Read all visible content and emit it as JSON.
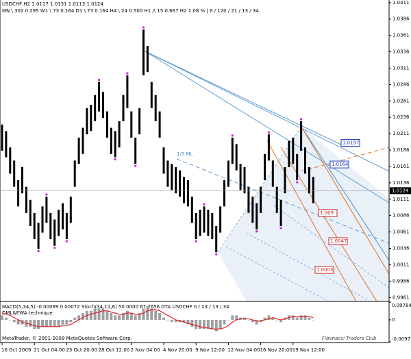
{
  "chart_data": {
    "type": "hl-bar",
    "title": "USDCHF,H2  1.0117 1.0131 1.0113 1.0124",
    "subtitle": "MN \\ 302   0.295   W1 \\ 73   0.164   D1 \\ 73   0.164   H4 \\ 24   0.500   H1 /\\ 15   0.667   H2  1.08 %  |  6 / 120 / 21 / 13 / 34",
    "annotation": "1/3 ML",
    "categories": [
      "16 Oct 2009",
      null,
      null,
      null,
      null,
      null,
      null,
      null,
      "21 Oct 04:00",
      null,
      null,
      null,
      null,
      null,
      null,
      null,
      "23 Oct 20:00",
      null,
      null,
      null,
      null,
      null,
      null,
      null,
      "28 Oct 12:00",
      null,
      null,
      null,
      null,
      null,
      null,
      null,
      "2 Nov 04:00",
      null,
      null,
      null,
      null,
      null,
      null,
      null,
      "4 Nov 20:00",
      null,
      null,
      null,
      null,
      null,
      null,
      null,
      "9 Nov 12:00",
      null,
      null,
      null,
      null,
      null,
      null,
      null,
      "12 Nov 04:00",
      null,
      null,
      null,
      null,
      null,
      null,
      null,
      "16 Nov 20:00",
      null,
      null,
      null,
      null,
      null,
      null,
      null,
      "19 Nov 12:00",
      null,
      null,
      null,
      null,
      null
    ],
    "series": [
      {
        "name": "High",
        "color": "#000000",
        "values": [
          1.0225,
          1.0215,
          1.019,
          1.017,
          1.014,
          1.016,
          1.013,
          1.011,
          1.009,
          1.0075,
          1.01,
          1.0115,
          1.009,
          1.008,
          1.0095,
          1.0105,
          1.009,
          1.0115,
          1.017,
          1.0205,
          1.022,
          1.025,
          1.0255,
          1.027,
          1.029,
          1.0275,
          1.0245,
          1.022,
          1.0215,
          1.023,
          1.027,
          1.03,
          1.0245,
          1.0205,
          1.025,
          1.037,
          1.0345,
          1.029,
          1.027,
          1.0245,
          1.019,
          1.017,
          1.0165,
          1.016,
          1.0155,
          1.0145,
          1.014,
          1.0115,
          1.009,
          1.0095,
          1.01,
          1.0095,
          1.009,
          1.007,
          1.01,
          1.014,
          1.017,
          1.0205,
          1.0195,
          1.0165,
          1.016,
          1.013,
          1.0115,
          1.0105,
          1.013,
          1.018,
          1.021,
          1.017,
          1.013,
          1.011,
          1.016,
          1.02,
          1.0205,
          1.018,
          1.023,
          1.019,
          1.016,
          1.0145
        ]
      },
      {
        "name": "Low",
        "color": "#000000",
        "values": [
          1.0185,
          1.0175,
          1.015,
          1.013,
          1.01,
          1.012,
          1.009,
          1.007,
          1.005,
          1.0035,
          1.006,
          1.0075,
          1.005,
          1.004,
          1.0055,
          1.0065,
          1.005,
          1.0075,
          1.013,
          1.0165,
          1.018,
          1.021,
          1.0215,
          1.023,
          1.0245,
          1.0235,
          1.0205,
          1.018,
          1.0175,
          1.019,
          1.023,
          1.025,
          1.0205,
          1.0165,
          1.021,
          1.03,
          1.0305,
          1.025,
          1.023,
          1.0205,
          1.015,
          1.013,
          1.0125,
          1.012,
          1.0115,
          1.0105,
          1.01,
          1.0075,
          1.005,
          1.0055,
          1.006,
          1.0055,
          1.005,
          1.003,
          1.006,
          1.01,
          1.013,
          1.0165,
          1.0155,
          1.0125,
          1.012,
          1.009,
          1.0075,
          1.0065,
          1.009,
          1.014,
          1.017,
          1.013,
          1.009,
          1.007,
          1.012,
          1.016,
          1.0165,
          1.014,
          1.0185,
          1.015,
          1.012,
          1.0105
        ]
      }
    ],
    "last_price": 1.0124,
    "price_tags": [
      {
        "price": 1.0197,
        "color": "#2040c0"
      },
      {
        "price": 1.0164,
        "color": "#2040c0"
      },
      {
        "price": 1.009,
        "color": "#d02020"
      },
      {
        "price": 1.0047,
        "color": "#d02020"
      },
      {
        "price": 1.0003,
        "color": "#d02020"
      }
    ],
    "ylim": [
      0.9955,
      1.0415
    ],
    "yticks": [
      1.0411,
      1.0386,
      1.0361,
      1.0336,
      1.0311,
      1.0286,
      1.0261,
      1.0236,
      1.0211,
      1.0186,
      1.0161,
      1.0136,
      1.0111,
      1.0086,
      1.0061,
      1.0036,
      1.0011,
      0.9986,
      0.9961
    ],
    "indicator": {
      "title": "MACD(5,34,5) -0.00099 0.00072  Stoch(34,11,6) 50.0000 67.2656  OTA USDCHF  0 / 23 / 13 / 34",
      "subtitle": "DML&EWA technique",
      "footer": "MetaTrader, © 2001-2009 MetaQuotes Software Corp.",
      "watermark": "Fibonacci Traders Club",
      "series": [
        {
          "name": "MACD",
          "color": "#a0a0a0",
          "values": [
            0.002,
            0.001,
            0,
            -0.001,
            -0.002,
            -0.002,
            -0.003,
            -0.003,
            -0.004,
            -0.004,
            -0.003,
            -0.003,
            -0.003,
            -0.003,
            -0.003,
            -0.002,
            -0.002,
            -0.001,
            0.001,
            0.002,
            0.003,
            0.004,
            0.004,
            0.005,
            0.005,
            0.005,
            0.004,
            0.003,
            0.002,
            0.002,
            0.003,
            0.004,
            0.003,
            0.002,
            0.003,
            0.005,
            0.006,
            0.005,
            0.004,
            0.003,
            0.001,
            0,
            -0.001,
            -0.001,
            -0.001,
            -0.001,
            -0.002,
            -0.003,
            -0.004,
            -0.004,
            -0.004,
            -0.004,
            -0.004,
            -0.005,
            -0.004,
            -0.002,
            0,
            0.002,
            0.002,
            0.001,
            0.001,
            0,
            -0.001,
            -0.002,
            -0.001,
            0.001,
            0.002,
            0.001,
            0,
            -0.001,
            0.001,
            0.002,
            0.002,
            0.001,
            0.002,
            0.002,
            0.001,
            0
          ]
        },
        {
          "name": "Signal",
          "color": "#e02020",
          "values": [
            0.003,
            0.0025,
            0.002,
            0.001,
            0,
            -0.001,
            -0.0015,
            -0.002,
            -0.0025,
            -0.003,
            -0.003,
            -0.003,
            -0.003,
            -0.003,
            -0.003,
            -0.0025,
            -0.0025,
            -0.002,
            -0.001,
            0,
            0.001,
            0.002,
            0.0025,
            0.003,
            0.0035,
            0.004,
            0.004,
            0.0035,
            0.003,
            0.0025,
            0.0025,
            0.003,
            0.003,
            0.0025,
            0.0025,
            0.003,
            0.004,
            0.0045,
            0.0045,
            0.004,
            0.003,
            0.002,
            0.001,
            0,
            -0.0005,
            -0.001,
            -0.0015,
            -0.002,
            -0.0025,
            -0.003,
            -0.0035,
            -0.0035,
            -0.004,
            -0.004,
            -0.004,
            -0.0035,
            -0.0025,
            -0.001,
            0,
            0.0005,
            0.0005,
            0.0005,
            0,
            -0.0005,
            -0.0005,
            0,
            0.0005,
            0.001,
            0.0005,
            0,
            0.0005,
            0.001,
            0.0015,
            0.0015,
            0.0015,
            0.0015,
            0.0015,
            0.001
          ]
        }
      ],
      "ylim": [
        -0.0097,
        0.00784
      ],
      "yticks": [
        0.00784,
        0,
        -0.0097
      ]
    }
  }
}
